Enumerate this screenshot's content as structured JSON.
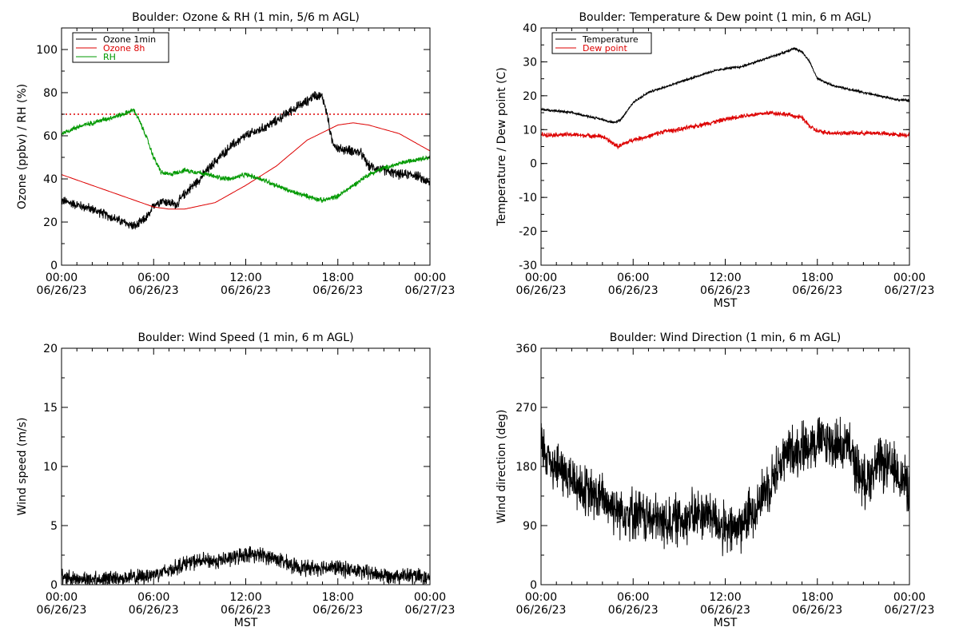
{
  "chart_data": [
    {
      "type": "line",
      "title": "Boulder: Ozone & RH (1 min, 5/6 m AGL)",
      "xlabel": "",
      "ylabel": "Ozone (ppbv) / RH (%)",
      "xlim": [
        0,
        24
      ],
      "ylim": [
        0,
        110
      ],
      "yticks": [
        0,
        20,
        40,
        60,
        80,
        100
      ],
      "xticks": [
        {
          "value": 0,
          "time": "00:00",
          "date": "06/26/23"
        },
        {
          "value": 6,
          "time": "06:00",
          "date": "06/26/23"
        },
        {
          "value": 12,
          "time": "12:00",
          "date": "06/26/23"
        },
        {
          "value": 18,
          "time": "18:00",
          "date": "06/26/23"
        },
        {
          "value": 24,
          "time": "00:00",
          "date": "06/27/23"
        }
      ],
      "legend": "top-left",
      "reference_line": {
        "y": 70,
        "color": "#dd0000",
        "style": "dotted"
      },
      "series": [
        {
          "name": "Ozone 1min",
          "color": "#000000",
          "noise": 2.0,
          "x": [
            0,
            1,
            2,
            3,
            4,
            4.8,
            5.2,
            5.8,
            6,
            6.5,
            7,
            7.5,
            8,
            9,
            10,
            11,
            12,
            13,
            14,
            15,
            16,
            16.5,
            17,
            17.3,
            17.6,
            18,
            19,
            19.5,
            20,
            21,
            22,
            23,
            23.5,
            24
          ],
          "y": [
            30,
            28,
            26,
            23,
            20,
            18,
            20,
            24,
            28,
            30,
            29,
            28,
            33,
            40,
            48,
            55,
            60,
            63,
            67,
            72,
            76,
            79,
            78,
            70,
            58,
            54,
            53,
            52,
            46,
            44,
            42,
            42,
            40,
            38
          ]
        },
        {
          "name": "Ozone 8h",
          "color": "#dd0000",
          "noise": 0,
          "x": [
            0,
            2,
            4,
            6,
            7,
            8,
            10,
            12,
            14,
            16,
            18,
            19,
            20,
            22,
            24
          ],
          "y": [
            42,
            37,
            32,
            27,
            26,
            26,
            29,
            37,
            46,
            58,
            65,
            66,
            65,
            61,
            53
          ]
        },
        {
          "name": "RH",
          "color": "#009900",
          "noise": 1.0,
          "x": [
            0,
            1,
            2,
            3,
            4,
            4.7,
            5,
            5.5,
            6,
            6.5,
            7,
            8,
            9,
            10,
            11,
            12,
            13,
            14,
            15,
            16,
            17,
            18,
            19,
            20,
            21,
            22,
            23,
            24
          ],
          "y": [
            61,
            64,
            66,
            68,
            70,
            72,
            68,
            60,
            50,
            43,
            42,
            44,
            43,
            41,
            40,
            42,
            40,
            37,
            34,
            32,
            30,
            32,
            37,
            42,
            45,
            47,
            49,
            50
          ]
        }
      ]
    },
    {
      "type": "line",
      "title": "Boulder: Temperature & Dew point (1 min, 6 m AGL)",
      "xlabel": "MST",
      "ylabel": "Temperature / Dew point (C)",
      "xlim": [
        0,
        24
      ],
      "ylim": [
        -30,
        40
      ],
      "yticks": [
        -30,
        -20,
        -10,
        0,
        10,
        20,
        30,
        40
      ],
      "xticks": [
        {
          "value": 0,
          "time": "00:00",
          "date": "06/26/23"
        },
        {
          "value": 6,
          "time": "06:00",
          "date": "06/26/23"
        },
        {
          "value": 12,
          "time": "12:00",
          "date": "06/26/23"
        },
        {
          "value": 18,
          "time": "18:00",
          "date": "06/26/23"
        },
        {
          "value": 24,
          "time": "00:00",
          "date": "06/27/23"
        }
      ],
      "legend": "top-left",
      "series": [
        {
          "name": "Temperature",
          "color": "#000000",
          "noise": 0.3,
          "x": [
            0,
            1,
            2,
            3,
            4,
            4.8,
            5.2,
            6,
            7,
            8,
            9,
            10,
            11,
            12,
            13,
            14,
            15,
            16,
            16.5,
            17,
            17.5,
            18,
            19,
            20,
            21,
            22,
            23,
            24
          ],
          "y": [
            16,
            15.5,
            15,
            14,
            13,
            12,
            13,
            18,
            21,
            22.5,
            24,
            25.5,
            27,
            28,
            28.5,
            30,
            31.5,
            33,
            34,
            33,
            30,
            25,
            23,
            22,
            21,
            20,
            19,
            18.5
          ]
        },
        {
          "name": "Dew point",
          "color": "#dd0000",
          "noise": 0.6,
          "x": [
            0,
            2,
            4,
            5,
            5.5,
            6,
            7,
            8,
            9,
            10,
            11,
            12,
            13,
            14,
            15,
            16,
            17,
            17.5,
            18,
            19,
            20,
            21,
            22,
            23,
            24
          ],
          "y": [
            8.5,
            8.5,
            8,
            5,
            6,
            7,
            8,
            9.5,
            10,
            11,
            12,
            13,
            14,
            14.5,
            15,
            14.5,
            13.5,
            11,
            9.5,
            9,
            9,
            9,
            9,
            8.5,
            8.5
          ]
        }
      ]
    },
    {
      "type": "line",
      "title": "Boulder: Wind Speed (1 min, 6 m AGL)",
      "xlabel": "MST",
      "ylabel": "Wind speed (m/s)",
      "xlim": [
        0,
        24
      ],
      "ylim": [
        0,
        20
      ],
      "yticks": [
        0,
        5,
        10,
        15,
        20
      ],
      "xticks": [
        {
          "value": 0,
          "time": "00:00",
          "date": "06/26/23"
        },
        {
          "value": 6,
          "time": "06:00",
          "date": "06/26/23"
        },
        {
          "value": 12,
          "time": "12:00",
          "date": "06/26/23"
        },
        {
          "value": 18,
          "time": "18:00",
          "date": "06/26/23"
        },
        {
          "value": 24,
          "time": "00:00",
          "date": "06/27/23"
        }
      ],
      "legend": "none",
      "series": [
        {
          "color": "#000000",
          "noise": 0.6,
          "floor": 0,
          "x": [
            0,
            1,
            2,
            3,
            4,
            5,
            6,
            7,
            8,
            9,
            10,
            11,
            12,
            13,
            14,
            15,
            16,
            17,
            18,
            19,
            20,
            21,
            22,
            23,
            24
          ],
          "y": [
            0.7,
            0.5,
            0.5,
            0.5,
            0.6,
            0.6,
            0.9,
            1.2,
            1.8,
            2.0,
            2.0,
            2.2,
            2.6,
            2.5,
            2.2,
            1.6,
            1.4,
            1.5,
            1.4,
            1.2,
            1.0,
            0.8,
            0.8,
            0.7,
            0.5
          ]
        }
      ]
    },
    {
      "type": "line",
      "title": "Boulder: Wind Direction (1 min, 6 m AGL)",
      "xlabel": "MST",
      "ylabel": "Wind direction (deg)",
      "xlim": [
        0,
        24
      ],
      "ylim": [
        0,
        360
      ],
      "yticks": [
        0,
        90,
        180,
        270,
        360
      ],
      "xticks": [
        {
          "value": 0,
          "time": "00:00",
          "date": "06/26/23"
        },
        {
          "value": 6,
          "time": "06:00",
          "date": "06/26/23"
        },
        {
          "value": 12,
          "time": "12:00",
          "date": "06/26/23"
        },
        {
          "value": 18,
          "time": "18:00",
          "date": "06/26/23"
        },
        {
          "value": 24,
          "time": "00:00",
          "date": "06/27/23"
        }
      ],
      "legend": "none",
      "series": [
        {
          "color": "#000000",
          "noise": 35,
          "floor": 0,
          "x": [
            0,
            1,
            2,
            3,
            4,
            5,
            6,
            7,
            8,
            9,
            10,
            11,
            12,
            13,
            14,
            15,
            16,
            17,
            18,
            19,
            20,
            21,
            22,
            23,
            24
          ],
          "y": [
            210,
            180,
            160,
            140,
            130,
            115,
            110,
            100,
            95,
            100,
            105,
            110,
            80,
            90,
            120,
            160,
            200,
            210,
            220,
            215,
            210,
            155,
            185,
            175,
            150
          ]
        }
      ]
    }
  ]
}
